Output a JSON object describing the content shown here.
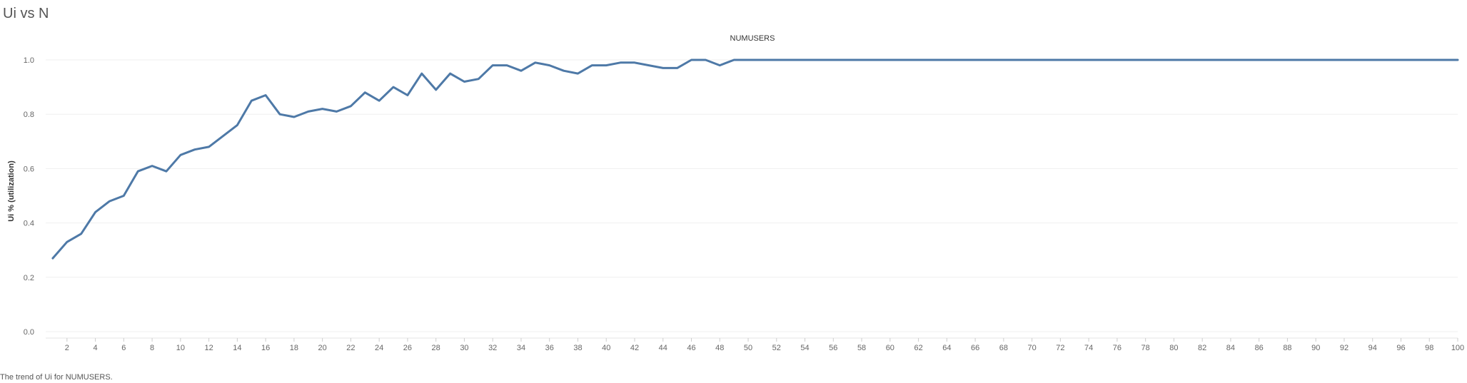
{
  "title": "Ui vs N",
  "caption": "The trend of Ui for NUMUSERS.",
  "chart_data": {
    "type": "line",
    "title": "NUMUSERS",
    "xlabel": "",
    "ylabel": "Ui % (utilization)",
    "xlim": [
      1,
      100
    ],
    "ylim": [
      0,
      1.0
    ],
    "x_ticks": [
      2,
      4,
      6,
      8,
      10,
      12,
      14,
      16,
      18,
      20,
      22,
      24,
      26,
      28,
      30,
      32,
      34,
      36,
      38,
      40,
      42,
      44,
      46,
      48,
      50,
      52,
      54,
      56,
      58,
      60,
      62,
      64,
      66,
      68,
      70,
      72,
      74,
      76,
      78,
      80,
      82,
      84,
      86,
      88,
      90,
      92,
      94,
      96,
      98,
      100
    ],
    "y_ticks": [
      "0.0",
      "0.2",
      "0.4",
      "0.6",
      "0.8",
      "1.0"
    ],
    "grid": true,
    "series": [
      {
        "color": "#4e79a7",
        "x": [
          1,
          2,
          3,
          4,
          5,
          6,
          7,
          8,
          9,
          10,
          11,
          12,
          13,
          14,
          15,
          16,
          17,
          18,
          19,
          20,
          21,
          22,
          23,
          24,
          25,
          26,
          27,
          28,
          29,
          30,
          31,
          32,
          33,
          34,
          35,
          36,
          37,
          38,
          39,
          40,
          41,
          42,
          43,
          44,
          45,
          46,
          47,
          48,
          49,
          50,
          51,
          52,
          53,
          54,
          55,
          56,
          57,
          58,
          59,
          60,
          61,
          62,
          63,
          64,
          65,
          66,
          67,
          68,
          69,
          70,
          71,
          72,
          73,
          74,
          75,
          76,
          77,
          78,
          79,
          80,
          81,
          82,
          83,
          84,
          85,
          86,
          87,
          88,
          89,
          90,
          91,
          92,
          93,
          94,
          95,
          96,
          97,
          98,
          99,
          100
        ],
        "values": [
          0.27,
          0.33,
          0.36,
          0.44,
          0.48,
          0.5,
          0.59,
          0.61,
          0.59,
          0.65,
          0.67,
          0.68,
          0.72,
          0.76,
          0.85,
          0.87,
          0.8,
          0.79,
          0.81,
          0.82,
          0.81,
          0.83,
          0.88,
          0.85,
          0.9,
          0.87,
          0.95,
          0.89,
          0.95,
          0.92,
          0.93,
          0.98,
          0.98,
          0.96,
          0.99,
          0.98,
          0.96,
          0.95,
          0.98,
          0.98,
          0.99,
          0.99,
          0.98,
          0.97,
          0.97,
          1.0,
          1.0,
          0.98,
          1.0,
          1.0,
          1.0,
          1.0,
          1.0,
          1.0,
          1.0,
          1.0,
          1.0,
          1.0,
          1.0,
          1.0,
          1.0,
          1.0,
          1.0,
          1.0,
          1.0,
          1.0,
          1.0,
          1.0,
          1.0,
          1.0,
          1.0,
          1.0,
          1.0,
          1.0,
          1.0,
          1.0,
          1.0,
          1.0,
          1.0,
          1.0,
          1.0,
          1.0,
          1.0,
          1.0,
          1.0,
          1.0,
          1.0,
          1.0,
          1.0,
          1.0,
          1.0,
          1.0,
          1.0,
          1.0,
          1.0,
          1.0,
          1.0,
          1.0,
          1.0,
          1.0
        ]
      }
    ]
  }
}
